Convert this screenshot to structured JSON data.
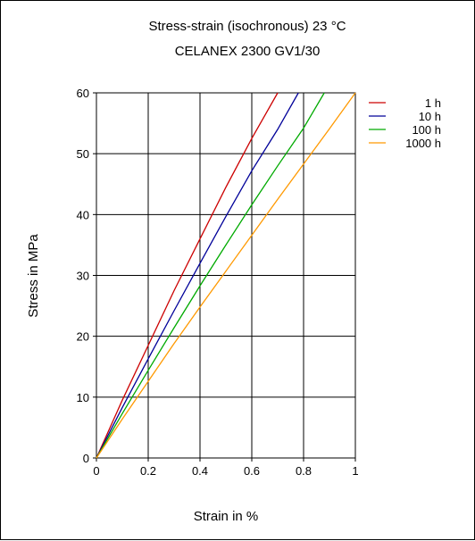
{
  "chart_data": {
    "type": "line",
    "title": "Stress-strain (isochronous) 23 °C",
    "subtitle": "CELANEX 2300 GV1/30",
    "xlabel": "Strain in %",
    "ylabel": "Stress in MPa",
    "xlim": [
      0,
      1
    ],
    "ylim": [
      0,
      60
    ],
    "x_ticks": [
      "0",
      "0.2",
      "0.4",
      "0.6",
      "0.8",
      "1"
    ],
    "y_ticks": [
      "0",
      "10",
      "20",
      "30",
      "40",
      "50",
      "60"
    ],
    "grid": true,
    "legend_position": "right",
    "series": [
      {
        "name": "1 h",
        "color": "#cc0000",
        "points": [
          [
            0,
            0
          ],
          [
            0.1,
            9.5
          ],
          [
            0.2,
            18.5
          ],
          [
            0.3,
            27.5
          ],
          [
            0.4,
            36
          ],
          [
            0.5,
            44.5
          ],
          [
            0.6,
            52.5
          ],
          [
            0.7,
            60
          ]
        ]
      },
      {
        "name": "10 h",
        "color": "#000099",
        "points": [
          [
            0,
            0
          ],
          [
            0.1,
            8.3
          ],
          [
            0.2,
            16.3
          ],
          [
            0.3,
            24.2
          ],
          [
            0.4,
            32
          ],
          [
            0.5,
            39.7
          ],
          [
            0.6,
            47.2
          ],
          [
            0.7,
            54
          ],
          [
            0.78,
            60
          ]
        ]
      },
      {
        "name": "100 h",
        "color": "#00aa00",
        "points": [
          [
            0,
            0
          ],
          [
            0.1,
            7.3
          ],
          [
            0.2,
            14.4
          ],
          [
            0.3,
            21.4
          ],
          [
            0.4,
            28.3
          ],
          [
            0.5,
            35
          ],
          [
            0.6,
            41.6
          ],
          [
            0.7,
            48
          ],
          [
            0.8,
            54.2
          ],
          [
            0.88,
            60
          ]
        ]
      },
      {
        "name": "1000 h",
        "color": "#ff9900",
        "points": [
          [
            0,
            0
          ],
          [
            0.1,
            6.4
          ],
          [
            0.2,
            12.6
          ],
          [
            0.3,
            18.8
          ],
          [
            0.4,
            24.8
          ],
          [
            0.5,
            30.7
          ],
          [
            0.6,
            36.6
          ],
          [
            0.7,
            42.5
          ],
          [
            0.8,
            48.3
          ],
          [
            0.9,
            54.1
          ],
          [
            1,
            60
          ]
        ]
      }
    ]
  }
}
